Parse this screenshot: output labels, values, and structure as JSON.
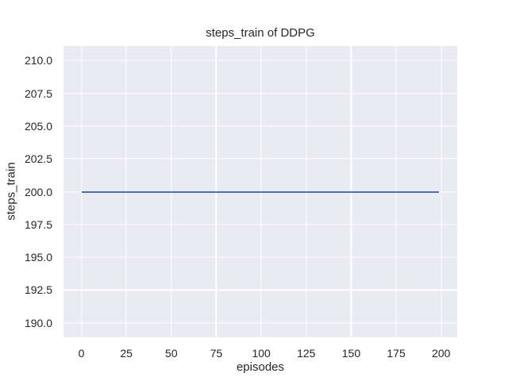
{
  "chart_data": {
    "type": "line",
    "title": "steps_train of DDPG",
    "xlabel": "episodes",
    "ylabel": "steps_train",
    "xlim": [
      -9.95,
      208.95
    ],
    "ylim": [
      188.9,
      211.1
    ],
    "grid": true,
    "legend_position": "none",
    "xticks": {
      "values": [
        0,
        25,
        50,
        75,
        100,
        125,
        150,
        175,
        200
      ],
      "labels": [
        "0",
        "25",
        "50",
        "75",
        "100",
        "125",
        "150",
        "175",
        "200"
      ]
    },
    "yticks": {
      "values": [
        190.0,
        192.5,
        195.0,
        197.5,
        200.0,
        202.5,
        205.0,
        207.5,
        210.0
      ],
      "labels": [
        "190.0",
        "192.5",
        "195.0",
        "197.5",
        "200.0",
        "202.5",
        "205.0",
        "207.5",
        "210.0"
      ]
    },
    "series": [
      {
        "name": "steps_train",
        "x": [
          0,
          199
        ],
        "y": [
          200,
          200
        ],
        "color": "#4C72B0"
      }
    ],
    "colors": {
      "figure_background": "#FFFFFF",
      "plot_background": "#EAEAF2",
      "gridline": "#FFFFFF",
      "text": "#262626",
      "line": "#4C72B0"
    }
  }
}
